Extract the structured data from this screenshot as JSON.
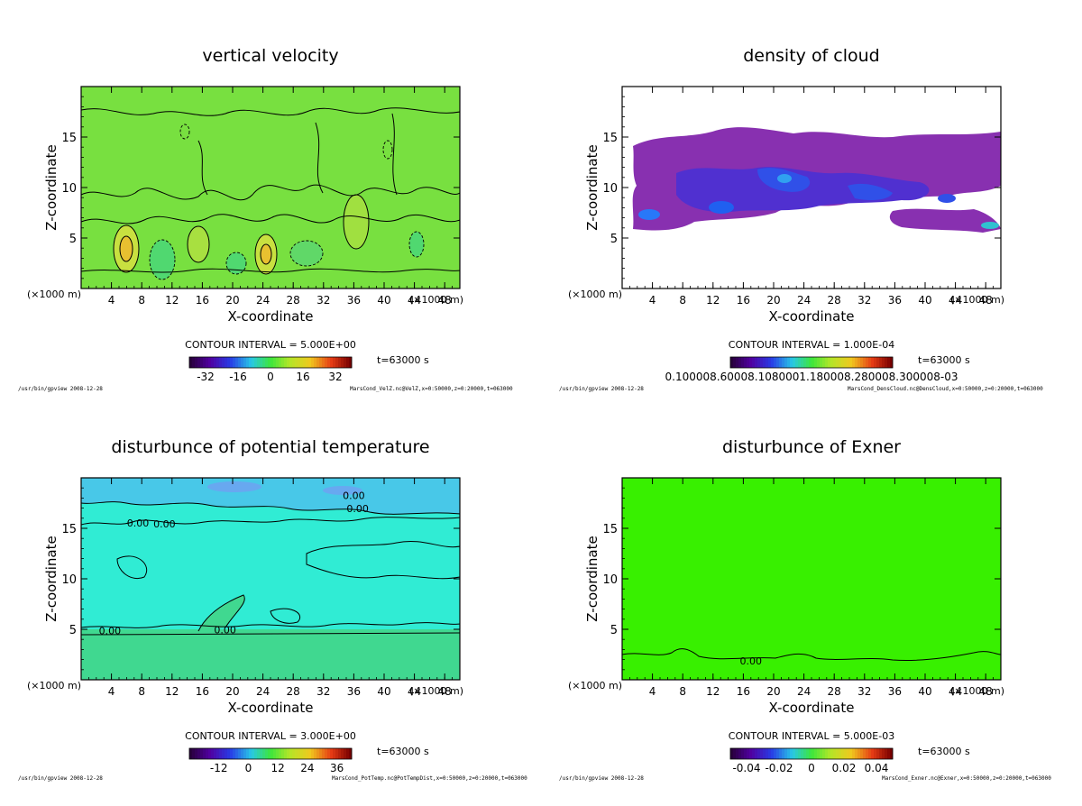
{
  "chart_data": [
    {
      "type": "heatmap",
      "title": "vertical velocity",
      "xlabel": "X-coordinate",
      "ylabel": "Z-coordinate",
      "x_unit_label": "(×1000 m)",
      "xlim": [
        0,
        50
      ],
      "ylim": [
        0,
        20
      ],
      "x_ticks": [
        "4",
        "8",
        "12",
        "16",
        "20",
        "24",
        "28",
        "32",
        "36",
        "40",
        "44",
        "48"
      ],
      "y_ticks": [
        "5",
        "10",
        "15"
      ],
      "contour_interval": "CONTOUR INTERVAL = 5.000E+00",
      "time": "t=63000 s",
      "colorbar_ticks": [
        "-32",
        "-16",
        "0",
        "16",
        "32"
      ],
      "colorbar_range": [
        -40,
        40
      ],
      "footer_left": "/usr/bin/gpview  2008-12-28",
      "footer_right": "MarsCond_VelZ.nc@VelZ,x=0:50000,z=0:20000,t=063000",
      "fill": "#78e040",
      "contour_labels": []
    },
    {
      "type": "heatmap",
      "title": "density of cloud",
      "xlabel": "X-coordinate",
      "ylabel": "Z-coordinate",
      "x_unit_label": "(×1000 m)",
      "xlim": [
        0,
        50
      ],
      "ylim": [
        0,
        20
      ],
      "x_ticks": [
        "4",
        "8",
        "12",
        "16",
        "20",
        "24",
        "28",
        "32",
        "36",
        "40",
        "44",
        "48"
      ],
      "y_ticks": [
        "5",
        "10",
        "15"
      ],
      "contour_interval": "CONTOUR INTERVAL = 1.000E-04",
      "time": "t=63000 s",
      "colorbar_ticks": [
        "0.100008.60008.1080001.180008.280008.300008-03"
      ],
      "colorbar_range": [
        0,
        1
      ],
      "footer_left": "/usr/bin/gpview  2008-12-28",
      "footer_right": "MarsCond_DensCloud.nc@DensCloud,x=0:50000,z=0:20000,t=063000",
      "fill": "#ffffff",
      "contour_labels": []
    },
    {
      "type": "heatmap",
      "title": "disturbunce of potential temperature",
      "xlabel": "X-coordinate",
      "ylabel": "Z-coordinate",
      "x_unit_label": "(×1000 m)",
      "xlim": [
        0,
        50
      ],
      "ylim": [
        0,
        20
      ],
      "x_ticks": [
        "4",
        "8",
        "12",
        "16",
        "20",
        "24",
        "28",
        "32",
        "36",
        "40",
        "44",
        "48"
      ],
      "y_ticks": [
        "5",
        "10",
        "15"
      ],
      "contour_interval": "CONTOUR INTERVAL = 3.000E+00",
      "time": "t=63000 s",
      "colorbar_ticks": [
        "-12",
        "0",
        "12",
        "24",
        "36"
      ],
      "colorbar_range": [
        -24,
        42
      ],
      "footer_left": "/usr/bin/gpview  2008-12-28",
      "footer_right": "MarsCond_PotTemp.nc@PotTempDist,x=0:50000,z=0:20000,t=063000",
      "fill": "#30ecd4",
      "contour_labels": [
        {
          "text": "0.00",
          "x": 36,
          "y": 17.9
        },
        {
          "text": "0.00",
          "x": 7.5,
          "y": 15.2
        },
        {
          "text": "0.00",
          "x": 11,
          "y": 15.1
        },
        {
          "text": "0.00",
          "x": 36.5,
          "y": 16.6
        },
        {
          "text": "0.00",
          "x": 3.8,
          "y": 4.5
        },
        {
          "text": "0.00",
          "x": 19,
          "y": 4.6
        }
      ]
    },
    {
      "type": "heatmap",
      "title": "disturbunce of Exner",
      "xlabel": "X-coordinate",
      "ylabel": "Z-coordinate",
      "x_unit_label": "(×1000 m)",
      "xlim": [
        0,
        50
      ],
      "ylim": [
        0,
        20
      ],
      "x_ticks": [
        "4",
        "8",
        "12",
        "16",
        "20",
        "24",
        "28",
        "32",
        "36",
        "40",
        "44",
        "48"
      ],
      "y_ticks": [
        "5",
        "10",
        "15"
      ],
      "contour_interval": "CONTOUR INTERVAL = 5.000E-03",
      "time": "t=63000 s",
      "colorbar_ticks": [
        "-0.04",
        "-0.02",
        "0",
        "0.02",
        "0.04"
      ],
      "colorbar_range": [
        -0.05,
        0.05
      ],
      "footer_left": "/usr/bin/gpview  2008-12-28",
      "footer_right": "MarsCond_Exner.nc@Exner,x=0:50000,z=0:20000,t=063000",
      "fill": "#38f000",
      "contour_labels": [
        {
          "text": "0.00",
          "x": 17,
          "y": 1.5
        }
      ]
    }
  ]
}
